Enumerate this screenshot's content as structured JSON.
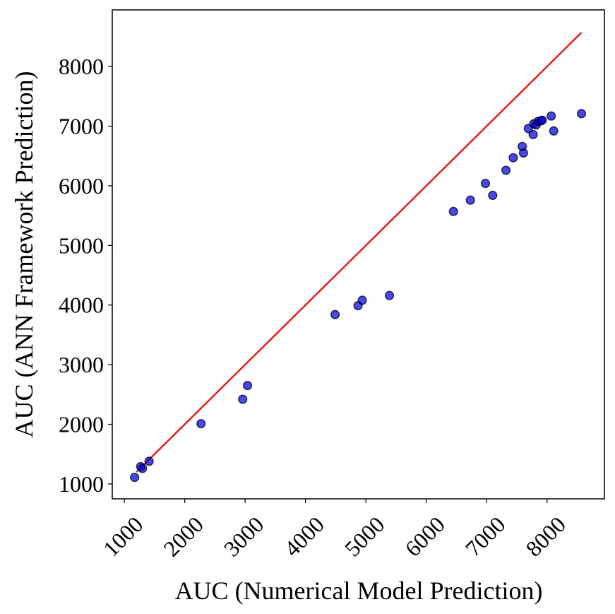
{
  "chart_data": {
    "type": "scatter",
    "xlabel": "AUC (Numerical Model Prediction)",
    "ylabel": "AUC (ANN Framework Prediction)",
    "xlim": [
      800,
      8950
    ],
    "ylim": [
      750,
      8950
    ],
    "xticks": [
      1000,
      2000,
      3000,
      4000,
      5000,
      6000,
      7000,
      8000
    ],
    "yticks": [
      1000,
      2000,
      3000,
      4000,
      5000,
      6000,
      7000,
      8000
    ],
    "x_tick_rotation": 45,
    "grid": false,
    "point_color": "#0000ee",
    "point_edge_color": "#000000",
    "line_color": "#ff0000",
    "reference_line": {
      "x": [
        1200,
        8570
      ],
      "y": [
        1200,
        8570
      ]
    },
    "points": [
      {
        "x": 1170,
        "y": 1110
      },
      {
        "x": 1270,
        "y": 1290
      },
      {
        "x": 1300,
        "y": 1260
      },
      {
        "x": 1410,
        "y": 1380
      },
      {
        "x": 2270,
        "y": 2010
      },
      {
        "x": 2960,
        "y": 2420
      },
      {
        "x": 3040,
        "y": 2650
      },
      {
        "x": 4490,
        "y": 3840
      },
      {
        "x": 4870,
        "y": 3990
      },
      {
        "x": 4940,
        "y": 4080
      },
      {
        "x": 5390,
        "y": 4160
      },
      {
        "x": 6450,
        "y": 5570
      },
      {
        "x": 6730,
        "y": 5760
      },
      {
        "x": 6980,
        "y": 6040
      },
      {
        "x": 7100,
        "y": 5840
      },
      {
        "x": 7320,
        "y": 6260
      },
      {
        "x": 7440,
        "y": 6470
      },
      {
        "x": 7590,
        "y": 6660
      },
      {
        "x": 7610,
        "y": 6550
      },
      {
        "x": 7690,
        "y": 6960
      },
      {
        "x": 7770,
        "y": 6860
      },
      {
        "x": 7780,
        "y": 7040
      },
      {
        "x": 7820,
        "y": 7020
      },
      {
        "x": 7850,
        "y": 7080
      },
      {
        "x": 7900,
        "y": 7090
      },
      {
        "x": 7920,
        "y": 7100
      },
      {
        "x": 8070,
        "y": 7170
      },
      {
        "x": 8110,
        "y": 6920
      },
      {
        "x": 8570,
        "y": 7210
      }
    ]
  }
}
